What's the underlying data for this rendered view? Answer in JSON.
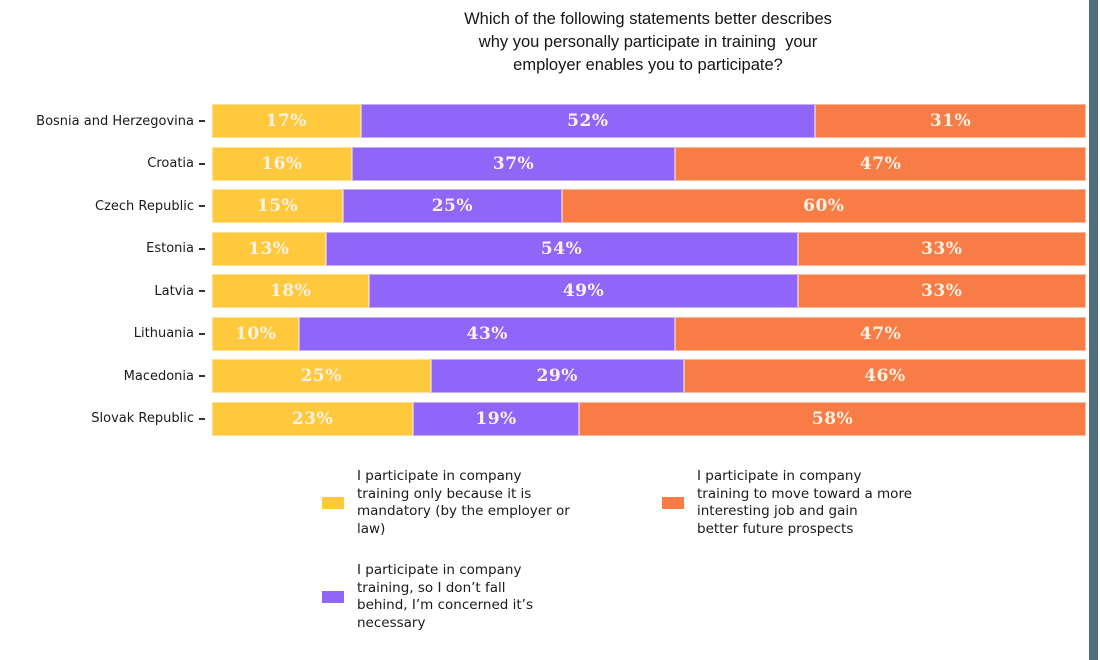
{
  "chart_data": {
    "type": "bar",
    "orientation": "horizontal",
    "stacked": true,
    "title": "Which of the following statements better describes\nwhy you personally participate in training  your\nemployer enables you to participate?",
    "categories": [
      "Bosnia and Herzegovina",
      "Croatia",
      "Czech Republic",
      "Estonia",
      "Latvia",
      "Lithuania",
      "Macedonia",
      "Slovak Republic"
    ],
    "series": [
      {
        "name": "I participate in company training only because it is mandatory (by the employer or law)",
        "color": "#FFC93E",
        "values": [
          17,
          16,
          15,
          13,
          18,
          10,
          25,
          23
        ]
      },
      {
        "name": "I participate in company training, so I don’t fall behind, I’m concerned it’s necessary",
        "color": "#9066F9",
        "values": [
          52,
          37,
          25,
          54,
          49,
          43,
          29,
          19
        ]
      },
      {
        "name": "I participate in company training to move toward a more interesting job and gain better future prospects",
        "color": "#F87C45",
        "values": [
          31,
          47,
          60,
          33,
          33,
          47,
          46,
          58
        ]
      }
    ],
    "value_suffix": "%",
    "xlim": [
      0,
      100
    ],
    "grid": false,
    "legend_position": "bottom",
    "bar_label_color": "#FBF2E6"
  },
  "legend": {
    "entries": [
      {
        "label": "I participate in company\ntraining only because it is\nmandatory (by the employer or\nlaw)",
        "color": "#FFC93E"
      },
      {
        "label": "I participate in company\ntraining, so I don’t fall\nbehind, I’m concerned it’s\nnecessary",
        "color": "#9066F9"
      },
      {
        "label": "I participate in company\ntraining to move toward a more\ninteresting job and gain\nbetter future prospects",
        "color": "#F87C45"
      }
    ]
  },
  "frame": {
    "background": "#FFFFFF",
    "edge_color": "#4E6E7A"
  }
}
